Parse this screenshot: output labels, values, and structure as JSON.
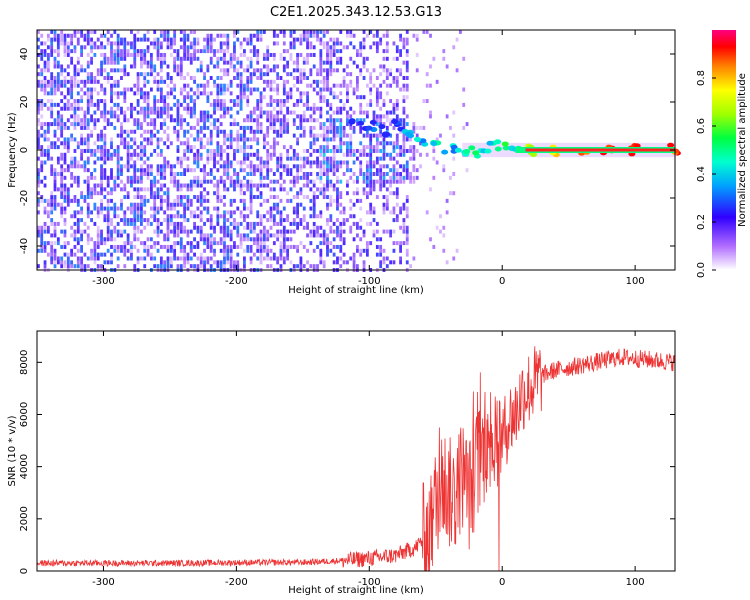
{
  "title": "C2E1.2025.343.12.53.G13",
  "chart_data": [
    {
      "type": "heatmap",
      "xlabel": "Height of straight line (km)",
      "ylabel": "Frequency (Hz)",
      "xlim": [
        -350,
        130
      ],
      "ylim": [
        -50,
        50
      ],
      "xticks": [
        -300,
        -200,
        -100,
        0,
        100
      ],
      "yticks": [
        -40,
        -20,
        0,
        20,
        40
      ],
      "colorbar": {
        "label": "Normalized spectral amplitude",
        "range": [
          0,
          1
        ],
        "ticks": [
          0.0,
          0.2,
          0.4,
          0.6,
          0.8
        ],
        "colors": [
          "#ffffff",
          "#8a3cff",
          "#0000ff",
          "#00c8ff",
          "#00ff80",
          "#40ff00",
          "#ffff00",
          "#ff8000",
          "#ff0000",
          "#ff0080"
        ]
      },
      "ridge": {
        "x": [
          -110,
          -100,
          -90,
          -80,
          -70,
          -60,
          -50,
          -40,
          -30,
          -20,
          -10,
          0,
          10,
          20,
          40,
          60,
          80,
          100,
          130
        ],
        "freq": [
          12,
          10,
          8,
          10,
          6,
          4,
          2,
          1,
          0,
          -1,
          1,
          2,
          1,
          0,
          0,
          0,
          0,
          0,
          0
        ],
        "amplitude": [
          0.3,
          0.35,
          0.25,
          0.3,
          0.4,
          0.45,
          0.5,
          0.45,
          0.5,
          0.55,
          0.5,
          0.6,
          0.55,
          0.7,
          0.8,
          0.9,
          0.95,
          0.95,
          0.95
        ]
      }
    },
    {
      "type": "line",
      "xlabel": "Height of straight line (km)",
      "ylabel": "SNR (10 * v/v)",
      "xlim": [
        -350,
        130
      ],
      "ylim": [
        0,
        9200
      ],
      "xticks": [
        -300,
        -200,
        -100,
        0,
        100
      ],
      "yticks": [
        0,
        2000,
        4000,
        6000,
        8000
      ],
      "color": "#ee3333",
      "series": [
        {
          "name": "SNR",
          "x": [
            -350,
            -300,
            -250,
            -200,
            -150,
            -120,
            -100,
            -80,
            -65,
            -55,
            -50,
            -45,
            -40,
            -35,
            -30,
            -25,
            -20,
            -15,
            -10,
            -5,
            0,
            5,
            10,
            15,
            20,
            30,
            40,
            50,
            60,
            70,
            80,
            90,
            100,
            110,
            120,
            130
          ],
          "y": [
            300,
            300,
            300,
            320,
            330,
            400,
            480,
            600,
            900,
            1500,
            2600,
            3500,
            3000,
            2800,
            3800,
            2900,
            3900,
            4500,
            5200,
            5500,
            5000,
            5800,
            6000,
            6800,
            7000,
            7500,
            7700,
            7800,
            7900,
            8000,
            8100,
            8200,
            8150,
            8100,
            8050,
            8000
          ]
        }
      ]
    }
  ]
}
